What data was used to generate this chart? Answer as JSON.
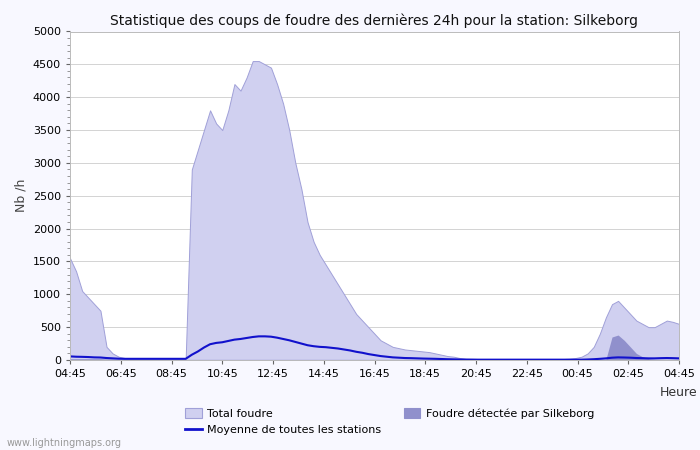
{
  "title": "Statistique des coups de foudre des dernières 24h pour la station: Silkeborg",
  "ylabel": "Nb /h",
  "xlabel": "Heure",
  "watermark": "www.lightningmaps.org",
  "ylim": [
    0,
    5000
  ],
  "yticks": [
    0,
    500,
    1000,
    1500,
    2000,
    2500,
    3000,
    3500,
    4000,
    4500,
    5000
  ],
  "xtick_labels": [
    "04:45",
    "06:45",
    "08:45",
    "10:45",
    "12:45",
    "14:45",
    "16:45",
    "18:45",
    "20:45",
    "22:45",
    "00:45",
    "02:45",
    "04:45"
  ],
  "bg_color": "#f8f8ff",
  "plot_bg_color": "#ffffff",
  "grid_color": "#cccccc",
  "total_color": "#d0d0f0",
  "total_edge_color": "#a0a0d8",
  "silkeborg_color": "#9090cc",
  "mean_line_color": "#1111cc",
  "total_foudre": [
    1550,
    1350,
    1050,
    950,
    850,
    750,
    200,
    100,
    50,
    30,
    30,
    30,
    30,
    30,
    30,
    30,
    30,
    30,
    30,
    30,
    2900,
    3200,
    3500,
    3800,
    3600,
    3500,
    3800,
    4200,
    4100,
    4300,
    4550,
    4550,
    4500,
    4450,
    4200,
    3900,
    3500,
    3000,
    2600,
    2100,
    1800,
    1600,
    1450,
    1300,
    1150,
    1000,
    850,
    700,
    600,
    500,
    400,
    300,
    250,
    200,
    180,
    160,
    150,
    140,
    130,
    120,
    100,
    80,
    60,
    50,
    30,
    20,
    20,
    15,
    15,
    15,
    15,
    15,
    15,
    15,
    15,
    15,
    15,
    15,
    15,
    15,
    15,
    15,
    20,
    30,
    50,
    100,
    200,
    400,
    650,
    850,
    900,
    800,
    700,
    600,
    550,
    500,
    500,
    550,
    600,
    580,
    550
  ],
  "silkeborg_foudre": [
    20,
    20,
    20,
    20,
    20,
    20,
    15,
    15,
    10,
    10,
    10,
    10,
    10,
    10,
    10,
    10,
    10,
    10,
    10,
    10,
    10,
    10,
    10,
    10,
    10,
    10,
    10,
    10,
    10,
    10,
    10,
    10,
    10,
    10,
    10,
    10,
    10,
    10,
    10,
    10,
    10,
    10,
    10,
    10,
    10,
    10,
    10,
    10,
    10,
    10,
    10,
    10,
    10,
    10,
    10,
    10,
    10,
    10,
    10,
    10,
    10,
    10,
    10,
    10,
    10,
    10,
    10,
    10,
    10,
    10,
    10,
    10,
    10,
    10,
    10,
    10,
    10,
    10,
    10,
    10,
    10,
    10,
    10,
    10,
    10,
    10,
    10,
    10,
    10,
    350,
    380,
    300,
    200,
    100,
    50,
    20,
    10,
    10,
    10,
    10,
    10
  ],
  "mean_line": [
    55,
    50,
    48,
    45,
    40,
    38,
    30,
    25,
    20,
    18,
    18,
    18,
    18,
    18,
    18,
    18,
    18,
    18,
    18,
    18,
    80,
    130,
    190,
    240,
    260,
    270,
    290,
    310,
    320,
    335,
    350,
    360,
    360,
    355,
    340,
    320,
    300,
    275,
    250,
    225,
    210,
    200,
    195,
    185,
    175,
    160,
    145,
    125,
    110,
    90,
    75,
    60,
    50,
    40,
    35,
    30,
    28,
    25,
    22,
    20,
    18,
    15,
    12,
    10,
    8,
    6,
    5,
    5,
    5,
    5,
    5,
    5,
    5,
    5,
    5,
    5,
    5,
    5,
    5,
    5,
    5,
    5,
    5,
    5,
    5,
    8,
    12,
    18,
    25,
    35,
    40,
    38,
    35,
    30,
    28,
    25,
    25,
    28,
    30,
    28,
    25
  ]
}
